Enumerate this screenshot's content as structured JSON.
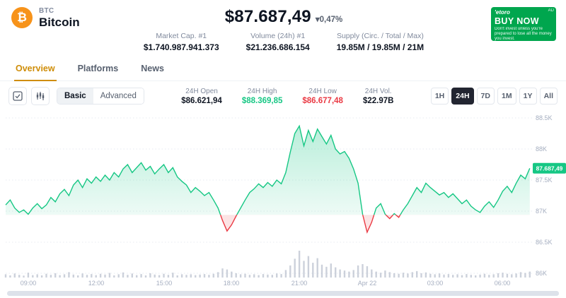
{
  "colors": {
    "accent": "#cf8d08",
    "green": "#16c784",
    "red": "#ea3943",
    "volume": "#aab3c3",
    "brand_orange": "#f7931a",
    "ad_green": "#00a64e"
  },
  "header": {
    "symbol": "BTC",
    "name": "Bitcoin",
    "coin_glyph": "₿",
    "price": "$87.687,49",
    "change": "▾0,47%",
    "stats": [
      {
        "label": "Market Cap. #1",
        "value": "$1.740.987.941.373"
      },
      {
        "label": "Volume (24h) #1",
        "value": "$21.236.686.154"
      },
      {
        "label": "Supply (Circ. / Total / Max)",
        "value": "19.85M / 19.85M / 21M"
      }
    ],
    "ad": {
      "brand": "'etoro",
      "cta": "BUY NOW",
      "disclaimer": "Don't invest unless you're prepared to lose all the money you invest.",
      "adchoices": "AD"
    }
  },
  "tabs": [
    {
      "label": "Overview"
    },
    {
      "label": "Platforms"
    },
    {
      "label": "News"
    }
  ],
  "toolbar": {
    "modes": [
      {
        "label": "Basic"
      },
      {
        "label": "Advanced"
      }
    ],
    "ohlc": [
      {
        "label": "24H Open",
        "value": "$86.621,94"
      },
      {
        "label": "24H High",
        "value": "$88.369,85"
      },
      {
        "label": "24H Low",
        "value": "$86.677,48"
      },
      {
        "label": "24H Vol.",
        "value": "$22.97B"
      }
    ],
    "ranges": [
      {
        "label": "1H"
      },
      {
        "label": "24H"
      },
      {
        "label": "7D"
      },
      {
        "label": "1M"
      },
      {
        "label": "1Y"
      },
      {
        "label": "All"
      }
    ]
  },
  "chart_data": {
    "type": "line",
    "title": "Bitcoin price, 24H range",
    "x_unit": "hours (24h clock, continuing past midnight into Apr 22)",
    "y_unit": "USD (thousands)",
    "x_range": [
      8.0,
      31.3
    ],
    "y_range": [
      86.0,
      88.65
    ],
    "baseline": 86.94,
    "grid": true,
    "legend": false,
    "current_price_label": "87.687,49",
    "y_ticks": [
      {
        "value": 88.5,
        "label": "88.5K"
      },
      {
        "value": 88.0,
        "label": "88K"
      },
      {
        "value": 87.5,
        "label": "87.5K"
      },
      {
        "value": 87.0,
        "label": "87K"
      },
      {
        "value": 86.5,
        "label": "86.5K"
      },
      {
        "value": 86.0,
        "label": "86K"
      }
    ],
    "x_ticks": [
      {
        "value": 9,
        "label": "09:00"
      },
      {
        "value": 12,
        "label": "12:00"
      },
      {
        "value": 15,
        "label": "15:00"
      },
      {
        "value": 18,
        "label": "18:00"
      },
      {
        "value": 21,
        "label": "21:00"
      },
      {
        "value": 24,
        "label": "Apr 22"
      },
      {
        "value": 27,
        "label": "03:00"
      },
      {
        "value": 30,
        "label": "06:00"
      }
    ],
    "points": [
      [
        8.0,
        87.1
      ],
      [
        8.2,
        87.18
      ],
      [
        8.4,
        87.05
      ],
      [
        8.6,
        86.98
      ],
      [
        8.8,
        87.02
      ],
      [
        9.0,
        86.95
      ],
      [
        9.2,
        87.05
      ],
      [
        9.4,
        87.12
      ],
      [
        9.6,
        87.04
      ],
      [
        9.8,
        87.1
      ],
      [
        10.0,
        87.22
      ],
      [
        10.2,
        87.15
      ],
      [
        10.4,
        87.28
      ],
      [
        10.6,
        87.35
      ],
      [
        10.8,
        87.25
      ],
      [
        11.0,
        87.42
      ],
      [
        11.2,
        87.5
      ],
      [
        11.4,
        87.38
      ],
      [
        11.6,
        87.52
      ],
      [
        11.8,
        87.45
      ],
      [
        12.0,
        87.55
      ],
      [
        12.2,
        87.48
      ],
      [
        12.4,
        87.58
      ],
      [
        12.6,
        87.5
      ],
      [
        12.8,
        87.62
      ],
      [
        13.0,
        87.55
      ],
      [
        13.2,
        87.68
      ],
      [
        13.4,
        87.75
      ],
      [
        13.6,
        87.62
      ],
      [
        13.8,
        87.7
      ],
      [
        14.0,
        87.78
      ],
      [
        14.2,
        87.66
      ],
      [
        14.4,
        87.72
      ],
      [
        14.6,
        87.6
      ],
      [
        14.8,
        87.68
      ],
      [
        15.0,
        87.75
      ],
      [
        15.2,
        87.62
      ],
      [
        15.4,
        87.7
      ],
      [
        15.6,
        87.55
      ],
      [
        15.8,
        87.48
      ],
      [
        16.0,
        87.42
      ],
      [
        16.2,
        87.3
      ],
      [
        16.4,
        87.38
      ],
      [
        16.6,
        87.32
      ],
      [
        16.8,
        87.25
      ],
      [
        17.0,
        87.3
      ],
      [
        17.2,
        87.18
      ],
      [
        17.4,
        87.05
      ],
      [
        17.6,
        86.85
      ],
      [
        17.8,
        86.68
      ],
      [
        18.0,
        86.78
      ],
      [
        18.2,
        86.92
      ],
      [
        18.4,
        87.05
      ],
      [
        18.6,
        87.18
      ],
      [
        18.8,
        87.3
      ],
      [
        19.0,
        87.36
      ],
      [
        19.2,
        87.44
      ],
      [
        19.4,
        87.38
      ],
      [
        19.6,
        87.46
      ],
      [
        19.8,
        87.4
      ],
      [
        20.0,
        87.5
      ],
      [
        20.2,
        87.44
      ],
      [
        20.4,
        87.62
      ],
      [
        20.6,
        87.95
      ],
      [
        20.8,
        88.25
      ],
      [
        21.0,
        88.37
      ],
      [
        21.2,
        88.05
      ],
      [
        21.4,
        88.3
      ],
      [
        21.6,
        88.12
      ],
      [
        21.8,
        88.32
      ],
      [
        22.0,
        88.2
      ],
      [
        22.2,
        88.08
      ],
      [
        22.4,
        88.22
      ],
      [
        22.6,
        88.0
      ],
      [
        22.8,
        87.92
      ],
      [
        23.0,
        87.96
      ],
      [
        23.2,
        87.85
      ],
      [
        23.4,
        87.68
      ],
      [
        23.6,
        87.45
      ],
      [
        23.8,
        86.95
      ],
      [
        24.0,
        86.66
      ],
      [
        24.2,
        86.82
      ],
      [
        24.4,
        87.05
      ],
      [
        24.6,
        87.12
      ],
      [
        24.8,
        86.95
      ],
      [
        25.0,
        86.88
      ],
      [
        25.2,
        86.96
      ],
      [
        25.4,
        86.9
      ],
      [
        25.6,
        87.02
      ],
      [
        25.8,
        87.12
      ],
      [
        26.0,
        87.25
      ],
      [
        26.2,
        87.38
      ],
      [
        26.4,
        87.3
      ],
      [
        26.6,
        87.45
      ],
      [
        26.8,
        87.38
      ],
      [
        27.0,
        87.32
      ],
      [
        27.2,
        87.26
      ],
      [
        27.4,
        87.3
      ],
      [
        27.6,
        87.22
      ],
      [
        27.8,
        87.28
      ],
      [
        28.0,
        87.2
      ],
      [
        28.2,
        87.12
      ],
      [
        28.4,
        87.18
      ],
      [
        28.6,
        87.08
      ],
      [
        28.8,
        87.02
      ],
      [
        29.0,
        86.98
      ],
      [
        29.2,
        87.08
      ],
      [
        29.4,
        87.15
      ],
      [
        29.6,
        87.06
      ],
      [
        29.8,
        87.18
      ],
      [
        30.0,
        87.32
      ],
      [
        30.2,
        87.4
      ],
      [
        30.4,
        87.3
      ],
      [
        30.6,
        87.45
      ],
      [
        30.8,
        87.58
      ],
      [
        31.0,
        87.52
      ],
      [
        31.2,
        87.69
      ]
    ],
    "volumes": [
      0.12,
      0.08,
      0.15,
      0.1,
      0.07,
      0.18,
      0.09,
      0.12,
      0.08,
      0.14,
      0.1,
      0.16,
      0.09,
      0.12,
      0.2,
      0.11,
      0.08,
      0.15,
      0.1,
      0.13,
      0.09,
      0.14,
      0.11,
      0.17,
      0.08,
      0.12,
      0.19,
      0.1,
      0.15,
      0.09,
      0.13,
      0.08,
      0.16,
      0.11,
      0.09,
      0.14,
      0.1,
      0.18,
      0.08,
      0.12,
      0.1,
      0.12,
      0.09,
      0.11,
      0.13,
      0.1,
      0.14,
      0.2,
      0.34,
      0.3,
      0.22,
      0.16,
      0.12,
      0.14,
      0.1,
      0.12,
      0.09,
      0.13,
      0.11,
      0.1,
      0.15,
      0.13,
      0.28,
      0.45,
      0.7,
      1.0,
      0.62,
      0.8,
      0.55,
      0.72,
      0.48,
      0.4,
      0.52,
      0.38,
      0.3,
      0.26,
      0.22,
      0.28,
      0.45,
      0.5,
      0.42,
      0.3,
      0.22,
      0.18,
      0.26,
      0.2,
      0.16,
      0.14,
      0.18,
      0.15,
      0.2,
      0.24,
      0.16,
      0.19,
      0.14,
      0.12,
      0.15,
      0.11,
      0.13,
      0.1,
      0.12,
      0.09,
      0.13,
      0.1,
      0.08,
      0.11,
      0.14,
      0.1,
      0.12,
      0.16,
      0.18,
      0.14,
      0.12,
      0.15,
      0.2,
      0.17,
      0.22
    ],
    "colors": {
      "up": "#16c784",
      "down": "#ea3943",
      "volume": "#aab3c3"
    }
  }
}
